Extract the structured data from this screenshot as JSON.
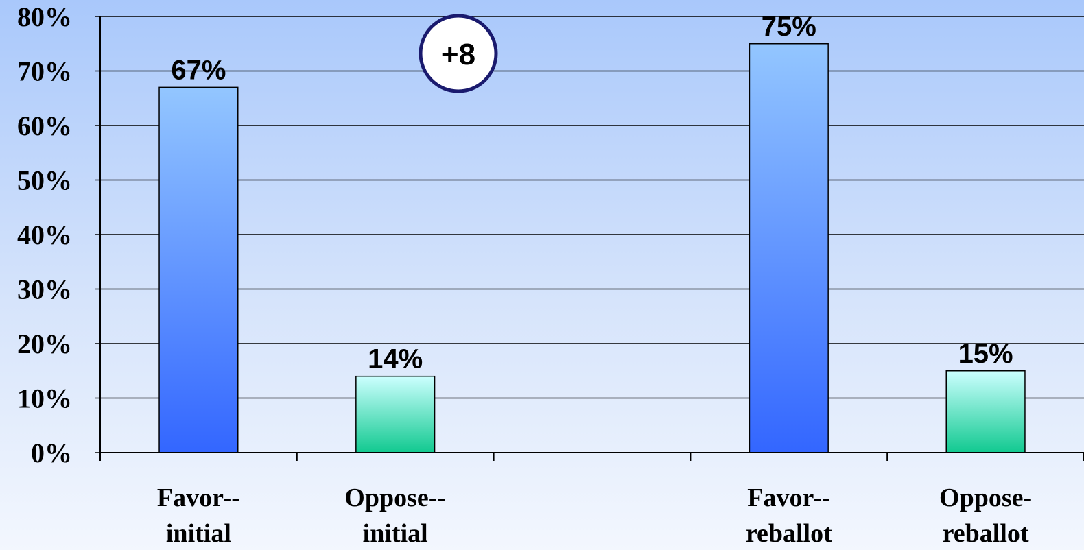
{
  "chart_data": {
    "type": "bar",
    "categories": [
      [
        "Favor--",
        "initial"
      ],
      [
        "Oppose--",
        "initial"
      ],
      [
        "",
        ""
      ],
      [
        "Favor--",
        "reballot"
      ],
      [
        "Oppose-",
        "reballot"
      ]
    ],
    "values": [
      67,
      14,
      null,
      75,
      15
    ],
    "data_labels": [
      "67%",
      "14%",
      "",
      "75%",
      "15%"
    ],
    "bar_styles": [
      "favor",
      "oppose",
      "",
      "favor",
      "oppose"
    ],
    "ylim": [
      0,
      80
    ],
    "yticks": [
      0,
      10,
      20,
      30,
      40,
      50,
      60,
      70,
      80
    ],
    "ytick_labels": [
      "0%",
      "10%",
      "20%",
      "30%",
      "40%",
      "50%",
      "60%",
      "70%",
      "80%"
    ],
    "grid": true,
    "annotation": "+8",
    "colors": {
      "favor_top": "#93c6ff",
      "favor_bottom": "#3366ff",
      "oppose_top": "#ccffff",
      "oppose_bottom": "#11c990",
      "badge_border": "#1a1a6e"
    }
  }
}
